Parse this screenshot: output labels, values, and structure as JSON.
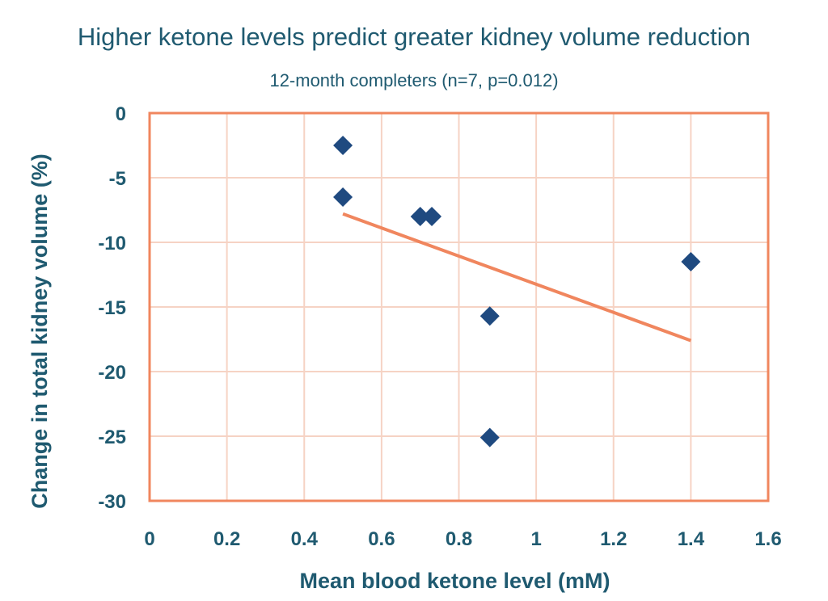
{
  "chart_data": {
    "type": "scatter",
    "title": "Higher ketone levels predict greater kidney volume reduction",
    "subtitle": "12-month completers (n=7, p=0.012)",
    "xlabel": "Mean blood ketone level (mM)",
    "ylabel": "Change in total kidney volume (%)",
    "xlim": [
      0,
      1.6
    ],
    "ylim": [
      -30,
      0
    ],
    "xticks": [
      0,
      0.2,
      0.4,
      0.6,
      0.8,
      1,
      1.2,
      1.4,
      1.6
    ],
    "xtick_labels": [
      "0",
      "0.2",
      "0.4",
      "0.6",
      "0.8",
      "1",
      "1.2",
      "1.4",
      "1.6"
    ],
    "yticks": [
      0,
      -5,
      -10,
      -15,
      -20,
      -25,
      -30
    ],
    "ytick_labels": [
      "0",
      "-5",
      "-10",
      "-15",
      "-20",
      "-25",
      "-30"
    ],
    "grid": true,
    "points": [
      {
        "x": 0.5,
        "y": -2.5
      },
      {
        "x": 0.5,
        "y": -6.5
      },
      {
        "x": 0.7,
        "y": -8.0
      },
      {
        "x": 0.73,
        "y": -8.0
      },
      {
        "x": 0.88,
        "y": -15.7
      },
      {
        "x": 0.88,
        "y": -25.1
      },
      {
        "x": 1.4,
        "y": -11.5
      }
    ],
    "trendline": {
      "x": [
        0.5,
        1.4
      ],
      "y": [
        -7.8,
        -17.6
      ]
    },
    "colors": {
      "points": "#1f4a80",
      "trendline": "#f0865e",
      "frame": "#f0865e",
      "grid": "#f6d3c4",
      "text": "#1f5a70"
    }
  }
}
